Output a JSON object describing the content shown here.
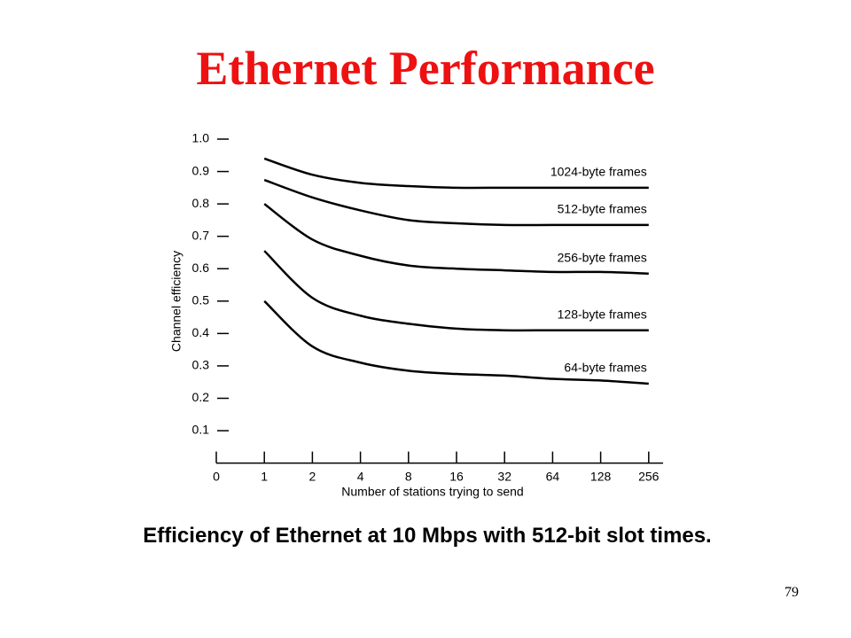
{
  "slide": {
    "title": "Ethernet Performance",
    "caption": "Efficiency of Ethernet at 10 Mbps with 512-bit slot times.",
    "page_number": "79"
  },
  "chart_data": {
    "type": "line",
    "xlabel": "Number of stations trying to send",
    "ylabel": "Channel efficiency",
    "categories": [
      "0",
      "1",
      "2",
      "4",
      "8",
      "16",
      "32",
      "64",
      "128",
      "256"
    ],
    "series": [
      {
        "name": "1024-byte frames",
        "color": "#000000",
        "values": [
          null,
          0.94,
          0.89,
          0.865,
          0.855,
          0.85,
          0.85,
          0.85,
          0.85,
          0.85
        ]
      },
      {
        "name": "512-byte frames",
        "color": "#000000",
        "values": [
          null,
          0.874,
          0.82,
          0.78,
          0.75,
          0.74,
          0.735,
          0.735,
          0.735,
          0.735
        ]
      },
      {
        "name": "256-byte frames",
        "color": "#000000",
        "values": [
          null,
          0.8,
          0.69,
          0.64,
          0.61,
          0.6,
          0.595,
          0.59,
          0.59,
          0.585
        ]
      },
      {
        "name": "128-byte frames",
        "color": "#000000",
        "values": [
          null,
          0.655,
          0.51,
          0.455,
          0.43,
          0.415,
          0.41,
          0.41,
          0.41,
          0.41
        ]
      },
      {
        "name": "64-byte frames",
        "color": "#000000",
        "values": [
          null,
          0.5,
          0.36,
          0.31,
          0.285,
          0.275,
          0.27,
          0.26,
          0.255,
          0.245
        ]
      }
    ],
    "ylim": [
      0,
      1
    ],
    "yticks": [
      0.1,
      0.2,
      0.3,
      0.4,
      0.5,
      0.6,
      0.7,
      0.8,
      0.9,
      {
        "value": 1,
        "label": "1.0"
      }
    ],
    "grid": false
  }
}
